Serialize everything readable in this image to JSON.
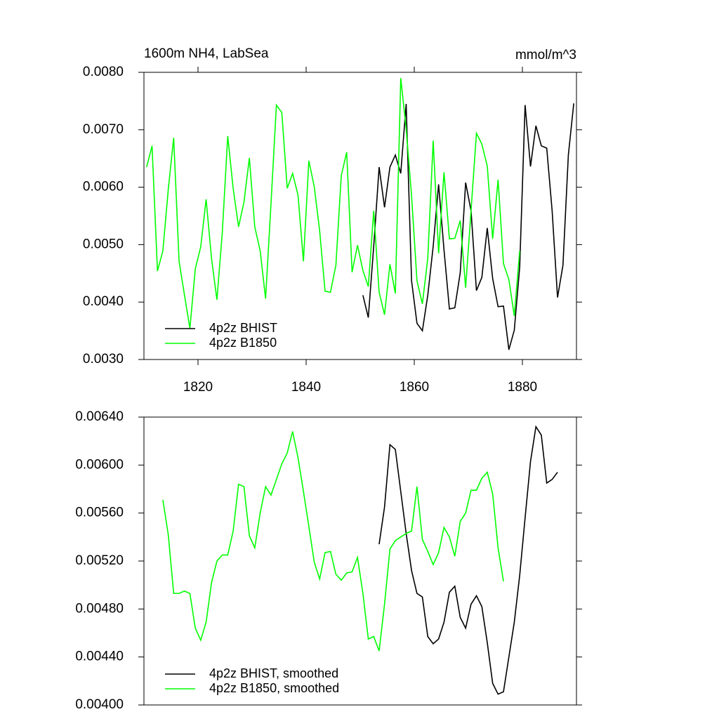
{
  "chart_data": [
    {
      "type": "line",
      "title": "1600m NH4, LabSea",
      "units": "mmol/m^3",
      "xlim": [
        1810,
        1890
      ],
      "xticks": [
        1820,
        1840,
        1860,
        1880
      ],
      "ylim": [
        0.003,
        0.008
      ],
      "yticks": [
        {
          "value": 0.003,
          "label": "0.0030"
        },
        {
          "value": 0.004,
          "label": "0.0040"
        },
        {
          "value": 0.005,
          "label": "0.0050"
        },
        {
          "value": 0.006,
          "label": "0.0060"
        },
        {
          "value": 0.007,
          "label": "0.0070"
        },
        {
          "value": 0.008,
          "label": "0.0080"
        }
      ],
      "legend": "lower left",
      "series": [
        {
          "name": "4p2z BHIST",
          "color": "#000000",
          "x": [
            1850.5,
            1851.5,
            1852.5,
            1853.5,
            1854.5,
            1855.5,
            1856.5,
            1857.5,
            1858.5,
            1859.5,
            1860.5,
            1861.5,
            1862.5,
            1863.5,
            1864.5,
            1865.5,
            1866.5,
            1867.5,
            1868.5,
            1869.5,
            1870.5,
            1871.5,
            1872.5,
            1873.5,
            1874.5,
            1875.5,
            1876.5,
            1877.5,
            1878.5,
            1879.5,
            1880.5,
            1881.5,
            1882.5,
            1883.5,
            1884.5,
            1885.5,
            1886.5,
            1887.5,
            1888.5,
            1889.5
          ],
          "values": [
            0.00412,
            0.00373,
            0.00497,
            0.00635,
            0.00565,
            0.00635,
            0.00656,
            0.00624,
            0.00745,
            0.00437,
            0.00363,
            0.0035,
            0.00412,
            0.00497,
            0.00605,
            0.00491,
            0.00388,
            0.0039,
            0.00451,
            0.00608,
            0.00559,
            0.0042,
            0.00443,
            0.00529,
            0.00441,
            0.00392,
            0.00393,
            0.00317,
            0.00351,
            0.00461,
            0.00743,
            0.00636,
            0.00707,
            0.00672,
            0.00668,
            0.00559,
            0.00408,
            0.00464,
            0.00656,
            0.00746
          ]
        },
        {
          "name": "4p2z B1850",
          "color": "#00ff00",
          "x": [
            1810.5,
            1811.5,
            1812.5,
            1813.5,
            1814.5,
            1815.5,
            1816.5,
            1817.5,
            1818.5,
            1819.5,
            1820.5,
            1821.5,
            1822.5,
            1823.5,
            1824.5,
            1825.5,
            1826.5,
            1827.5,
            1828.5,
            1829.5,
            1830.5,
            1831.5,
            1832.5,
            1833.5,
            1834.5,
            1835.5,
            1836.5,
            1837.5,
            1838.5,
            1839.5,
            1840.5,
            1841.5,
            1842.5,
            1843.5,
            1844.5,
            1845.5,
            1846.5,
            1847.5,
            1848.5,
            1849.5,
            1850.5,
            1851.5,
            1852.5,
            1853.5,
            1854.5,
            1855.5,
            1856.5,
            1857.5,
            1858.5,
            1859.5,
            1860.5,
            1861.5,
            1862.5,
            1863.5,
            1864.5,
            1865.5,
            1866.5,
            1867.5,
            1868.5,
            1869.5,
            1870.5,
            1871.5,
            1872.5,
            1873.5,
            1874.5,
            1875.5,
            1876.5,
            1877.5,
            1878.5,
            1879.5
          ],
          "values": [
            0.00635,
            0.00672,
            0.00454,
            0.00489,
            0.00596,
            0.00686,
            0.00471,
            0.00412,
            0.00354,
            0.00458,
            0.00496,
            0.00579,
            0.00476,
            0.00404,
            0.00522,
            0.00689,
            0.00598,
            0.00531,
            0.00574,
            0.00651,
            0.00531,
            0.00489,
            0.00406,
            0.00571,
            0.00743,
            0.0073,
            0.00598,
            0.00624,
            0.00586,
            0.00471,
            0.00646,
            0.00601,
            0.00524,
            0.00419,
            0.00417,
            0.00464,
            0.0062,
            0.00661,
            0.00452,
            0.00499,
            0.00455,
            0.00427,
            0.00559,
            0.00417,
            0.00378,
            0.00466,
            0.00415,
            0.0079,
            0.00702,
            0.00585,
            0.00437,
            0.00397,
            0.00476,
            0.00681,
            0.00485,
            0.00626,
            0.0051,
            0.00511,
            0.00542,
            0.00425,
            0.00559,
            0.00694,
            0.00675,
            0.00637,
            0.0051,
            0.00613,
            0.00467,
            0.00439,
            0.00376,
            0.00489
          ]
        }
      ]
    },
    {
      "type": "line",
      "xlim": [
        1810,
        1890
      ],
      "ylim": [
        0.004,
        0.0064
      ],
      "yticks": [
        {
          "value": 0.004,
          "label": "0.00400"
        },
        {
          "value": 0.0044,
          "label": "0.00440"
        },
        {
          "value": 0.0048,
          "label": "0.00480"
        },
        {
          "value": 0.0052,
          "label": "0.00520"
        },
        {
          "value": 0.0056,
          "label": "0.00560"
        },
        {
          "value": 0.006,
          "label": "0.00600"
        },
        {
          "value": 0.0064,
          "label": "0.00640"
        }
      ],
      "legend": "lower left",
      "series": [
        {
          "name": "4p2z BHIST, smoothed",
          "color": "#000000",
          "x": [
            1853.5,
            1854.5,
            1855.5,
            1856.5,
            1857.5,
            1858.5,
            1859.5,
            1860.5,
            1861.5,
            1862.5,
            1863.5,
            1864.5,
            1865.5,
            1866.5,
            1867.5,
            1868.5,
            1869.5,
            1870.5,
            1871.5,
            1872.5,
            1873.5,
            1874.5,
            1875.5,
            1876.5,
            1877.5,
            1878.5,
            1879.5,
            1880.5,
            1881.5,
            1882.5,
            1883.5,
            1884.5,
            1885.5,
            1886.5
          ],
          "values": [
            0.00534,
            0.00565,
            0.00617,
            0.00613,
            0.00578,
            0.00543,
            0.00512,
            0.00493,
            0.0049,
            0.00457,
            0.00451,
            0.00455,
            0.00469,
            0.00494,
            0.00499,
            0.00473,
            0.00464,
            0.00484,
            0.00491,
            0.00482,
            0.00452,
            0.00418,
            0.00409,
            0.00411,
            0.0044,
            0.00469,
            0.00508,
            0.00556,
            0.00603,
            0.00632,
            0.00625,
            0.00585,
            0.00588,
            0.00594
          ]
        },
        {
          "name": "4p2z B1850, smoothed",
          "color": "#00ff00",
          "x": [
            1813.5,
            1814.5,
            1815.5,
            1816.5,
            1817.5,
            1818.5,
            1819.5,
            1820.5,
            1821.5,
            1822.5,
            1823.5,
            1824.5,
            1825.5,
            1826.5,
            1827.5,
            1828.5,
            1829.5,
            1830.5,
            1831.5,
            1832.5,
            1833.5,
            1834.5,
            1835.5,
            1836.5,
            1837.5,
            1838.5,
            1839.5,
            1840.5,
            1841.5,
            1842.5,
            1843.5,
            1844.5,
            1845.5,
            1846.5,
            1847.5,
            1848.5,
            1849.5,
            1850.5,
            1851.5,
            1852.5,
            1853.5,
            1854.5,
            1855.5,
            1856.5,
            1857.5,
            1858.5,
            1859.5,
            1860.5,
            1861.5,
            1862.5,
            1863.5,
            1864.5,
            1865.5,
            1866.5,
            1867.5,
            1868.5,
            1869.5,
            1870.5,
            1871.5,
            1872.5,
            1873.5,
            1874.5,
            1875.5,
            1876.5
          ],
          "values": [
            0.00571,
            0.00542,
            0.00493,
            0.00493,
            0.00495,
            0.00493,
            0.00464,
            0.00454,
            0.00469,
            0.00502,
            0.0052,
            0.00525,
            0.00525,
            0.00545,
            0.00584,
            0.00582,
            0.00541,
            0.00531,
            0.0056,
            0.00582,
            0.00575,
            0.00588,
            0.00601,
            0.0061,
            0.00628,
            0.00606,
            0.00578,
            0.00549,
            0.00519,
            0.00505,
            0.00527,
            0.00528,
            0.00509,
            0.00504,
            0.0051,
            0.00511,
            0.00523,
            0.00493,
            0.00455,
            0.00457,
            0.00445,
            0.00484,
            0.0053,
            0.00537,
            0.0054,
            0.00543,
            0.00545,
            0.00582,
            0.00538,
            0.00528,
            0.00517,
            0.00527,
            0.00548,
            0.0054,
            0.00524,
            0.00553,
            0.0056,
            0.00579,
            0.00579,
            0.00589,
            0.00594,
            0.00576,
            0.00531,
            0.00503
          ]
        }
      ]
    }
  ]
}
